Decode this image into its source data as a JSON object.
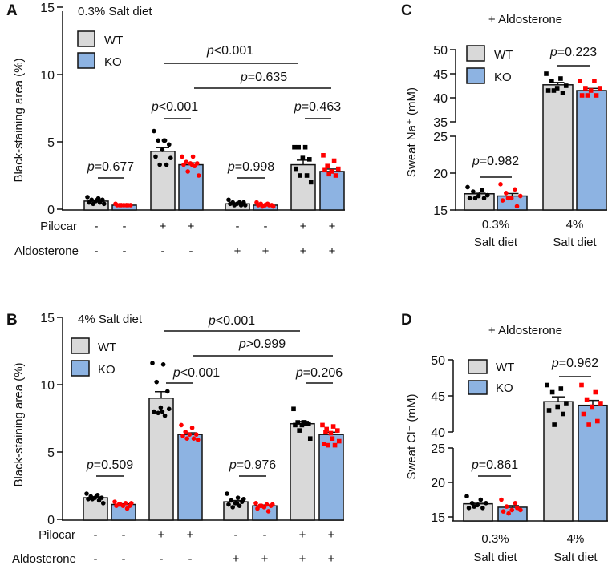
{
  "colors": {
    "wt_fill": "#d9d9d9",
    "ko_fill": "#8db3e2",
    "wt_point": "#000000",
    "ko_point": "#ff0000",
    "stroke": "#111111"
  },
  "chart_data": [
    {
      "id": "A",
      "type": "bar",
      "letter": "A",
      "title": "0.3% Salt diet",
      "ylabel": "Black-staining area (%)",
      "ylim": [
        0,
        15
      ],
      "yticks": [
        "0",
        "5",
        "10",
        "15"
      ],
      "ytick_values": [
        0,
        5,
        10,
        15
      ],
      "legend": {
        "wt": "WT",
        "ko": "KO",
        "placement": "top-left"
      },
      "rows": [
        {
          "label": "Pilocar",
          "signs": [
            "-",
            "-",
            "+",
            "+",
            "-",
            "-",
            "+",
            "+"
          ]
        },
        {
          "label": "Aldosterone",
          "signs": [
            "-",
            "-",
            "-",
            "-",
            "+",
            "+",
            "+",
            "+"
          ]
        }
      ],
      "bars": [
        {
          "group": "WT",
          "mean": 0.6,
          "marker": "circle",
          "points": [
            0.9,
            0.8,
            0.7,
            0.7,
            0.6,
            0.5,
            0.5,
            0.4,
            0.4,
            0.7
          ]
        },
        {
          "group": "KO",
          "mean": 0.3,
          "marker": "circle",
          "points": [
            0.4,
            0.3,
            0.3,
            0.3,
            0.3,
            0.3,
            0.3,
            0.3
          ]
        },
        {
          "group": "WT",
          "mean": 4.3,
          "marker": "circle",
          "points": [
            5.8,
            5.1,
            5.1,
            4.8,
            4.4,
            3.9,
            3.3,
            3.3,
            3.8,
            5.1
          ]
        },
        {
          "group": "KO",
          "mean": 3.3,
          "marker": "circle",
          "points": [
            3.9,
            3.9,
            3.5,
            3.4,
            3.4,
            3.3,
            3.2,
            2.8,
            2.5,
            3.3
          ]
        },
        {
          "group": "WT",
          "mean": 0.4,
          "marker": "circle",
          "points": [
            0.7,
            0.5,
            0.5,
            0.5,
            0.4,
            0.4,
            0.3,
            0.3,
            0.3
          ]
        },
        {
          "group": "KO",
          "mean": 0.3,
          "marker": "circle",
          "points": [
            0.5,
            0.4,
            0.4,
            0.3,
            0.3,
            0.3,
            0.3,
            0.2,
            0.2
          ]
        },
        {
          "group": "WT",
          "mean": 3.3,
          "marker": "square",
          "points": [
            4.6,
            4.6,
            4.6,
            3.7,
            3.8,
            3.0,
            2.5,
            2.5,
            2.0
          ]
        },
        {
          "group": "KO",
          "mean": 2.8,
          "marker": "square",
          "points": [
            4.0,
            3.6,
            3.2,
            3.0,
            2.8,
            2.9,
            2.5,
            2.6
          ]
        }
      ],
      "comparisons": [
        {
          "p": "p",
          "text": "=0.677"
        },
        {
          "p": "p",
          "text": "<0.001"
        },
        {
          "p": "p",
          "text": "=0.998"
        },
        {
          "p": "p",
          "text": "=0.463"
        },
        {
          "p": "p",
          "text": "<0.001"
        },
        {
          "p": "p",
          "text": "=0.635"
        }
      ]
    },
    {
      "id": "B",
      "type": "bar",
      "letter": "B",
      "title": "4% Salt diet",
      "ylabel": "Black-staining area (%)",
      "ylim": [
        0,
        15
      ],
      "yticks": [
        "0",
        "5",
        "10",
        "15"
      ],
      "ytick_values": [
        0,
        5,
        10,
        15
      ],
      "legend": {
        "wt": "WT",
        "ko": "KO",
        "placement": "top-left"
      },
      "rows": [
        {
          "label": "Pilocar",
          "signs": [
            "-",
            "-",
            "+",
            "+",
            "-",
            "-",
            "+",
            "+"
          ]
        },
        {
          "label": "Aldosterone",
          "signs": [
            "-",
            "-",
            "-",
            "-",
            "+",
            "+",
            "+",
            "+"
          ]
        }
      ],
      "bars": [
        {
          "group": "WT",
          "mean": 1.6,
          "marker": "circle",
          "points": [
            1.9,
            1.8,
            1.7,
            1.6,
            1.6,
            1.5,
            1.4,
            1.5,
            1.2
          ]
        },
        {
          "group": "KO",
          "mean": 1.1,
          "marker": "circle",
          "points": [
            1.3,
            1.2,
            1.1,
            1.0,
            1.0,
            1.0,
            0.8,
            1.1,
            1.2
          ]
        },
        {
          "group": "WT",
          "mean": 9.0,
          "marker": "circle",
          "points": [
            11.6,
            11.5,
            10.2,
            9.5,
            8.3,
            8.0,
            7.7,
            7.9,
            8.2,
            8.0
          ]
        },
        {
          "group": "KO",
          "mean": 6.3,
          "marker": "circle",
          "points": [
            7.0,
            6.8,
            6.5,
            6.3,
            6.3,
            6.2,
            6.0,
            6.0,
            5.9
          ]
        },
        {
          "group": "WT",
          "mean": 1.3,
          "marker": "circle",
          "points": [
            1.9,
            1.6,
            1.4,
            1.3,
            1.2,
            1.1,
            1.0,
            0.9,
            1.5,
            1.2
          ]
        },
        {
          "group": "KO",
          "mean": 1.0,
          "marker": "circle",
          "points": [
            1.2,
            1.1,
            1.0,
            1.0,
            0.9,
            0.8,
            0.6,
            1.0,
            1.1
          ]
        },
        {
          "group": "WT",
          "mean": 7.1,
          "marker": "square",
          "points": [
            8.2,
            7.2,
            7.2,
            7.1,
            7.0,
            7.0,
            7.1,
            6.6,
            6.0,
            7.2
          ]
        },
        {
          "group": "KO",
          "mean": 6.3,
          "marker": "square",
          "points": [
            7.0,
            6.9,
            6.7,
            6.6,
            6.4,
            5.6,
            5.5,
            5.5,
            5.8,
            6.0,
            6.5
          ]
        }
      ],
      "comparisons": [
        {
          "p": "p",
          "text": "=0.509"
        },
        {
          "p": "p",
          "text": "<0.001"
        },
        {
          "p": "p",
          "text": "=0.976"
        },
        {
          "p": "p",
          "text": "=0.206"
        },
        {
          "p": "p",
          "text": "<0.001"
        },
        {
          "p": "p",
          "text": ">0.999"
        }
      ]
    },
    {
      "id": "C",
      "type": "bar",
      "letter": "C",
      "title": "+ Aldosterone",
      "ylabel": "Sweat Na⁺ (mM)",
      "ylim": [
        15,
        50
      ],
      "axis_break": [
        25,
        35
      ],
      "yticks": [
        "15",
        "20",
        "25",
        "35",
        "40",
        "45",
        "50"
      ],
      "ytick_values": [
        15,
        20,
        25,
        35,
        40,
        45,
        50
      ],
      "legend": {
        "wt": "WT",
        "ko": "KO",
        "placement": "top-left"
      },
      "categories": [
        {
          "line1": "0.3%",
          "line2": "Salt diet"
        },
        {
          "line1": "4%",
          "line2": "Salt diet"
        }
      ],
      "bars": [
        {
          "group": "WT",
          "mean": 17.2,
          "marker": "circle",
          "points": [
            18.1,
            17.7,
            17.5,
            17.0,
            16.9,
            16.6,
            16.6,
            16.6
          ]
        },
        {
          "group": "KO",
          "mean": 16.9,
          "marker": "circle",
          "points": [
            18.5,
            17.8,
            17.3,
            16.9,
            16.6,
            16.3,
            15.5,
            16.6
          ]
        },
        {
          "group": "WT",
          "mean": 42.7,
          "marker": "square",
          "points": [
            45.0,
            44.0,
            43.5,
            42.5,
            42.0,
            41.5,
            41.0,
            41.5
          ]
        },
        {
          "group": "KO",
          "mean": 41.5,
          "marker": "square",
          "points": [
            43.5,
            43.5,
            42.0,
            42.0,
            41.5,
            40.5,
            40.5,
            40.5
          ]
        }
      ],
      "comparisons": [
        {
          "p": "p",
          "text": "=0.982"
        },
        {
          "p": "p",
          "text": "=0.223"
        }
      ]
    },
    {
      "id": "D",
      "type": "bar",
      "letter": "D",
      "title": "+ Aldosterone",
      "ylabel": "Sweat Cl⁻ (mM)",
      "ylim": [
        15,
        50
      ],
      "axis_break": [
        25,
        40
      ],
      "yticks": [
        "15",
        "20",
        "25",
        "40",
        "45",
        "50"
      ],
      "ytick_values": [
        15,
        20,
        25,
        40,
        45,
        50
      ],
      "legend": {
        "wt": "WT",
        "ko": "KO",
        "placement": "top-left"
      },
      "categories": [
        {
          "line1": "0.3%",
          "line2": "Salt diet"
        },
        {
          "line1": "4%",
          "line2": "Salt diet"
        }
      ],
      "bars": [
        {
          "group": "WT",
          "mean": 16.9,
          "marker": "circle",
          "points": [
            18.0,
            17.5,
            17.0,
            17.0,
            16.7,
            16.3,
            16.3,
            16.5
          ]
        },
        {
          "group": "KO",
          "mean": 16.4,
          "marker": "circle",
          "points": [
            17.5,
            17.0,
            16.5,
            16.0,
            16.0,
            15.8,
            16.3,
            15.5
          ]
        },
        {
          "group": "WT",
          "mean": 44.2,
          "marker": "square",
          "points": [
            46.5,
            46.0,
            45.5,
            44.0,
            43.5,
            43.0,
            42.5,
            41.0
          ]
        },
        {
          "group": "KO",
          "mean": 43.7,
          "marker": "square",
          "points": [
            46.5,
            45.5,
            44.5,
            44.0,
            43.5,
            42.5,
            41.5,
            41.0
          ]
        }
      ],
      "comparisons": [
        {
          "p": "p",
          "text": "=0.861"
        },
        {
          "p": "p",
          "text": "=0.962"
        }
      ]
    }
  ]
}
